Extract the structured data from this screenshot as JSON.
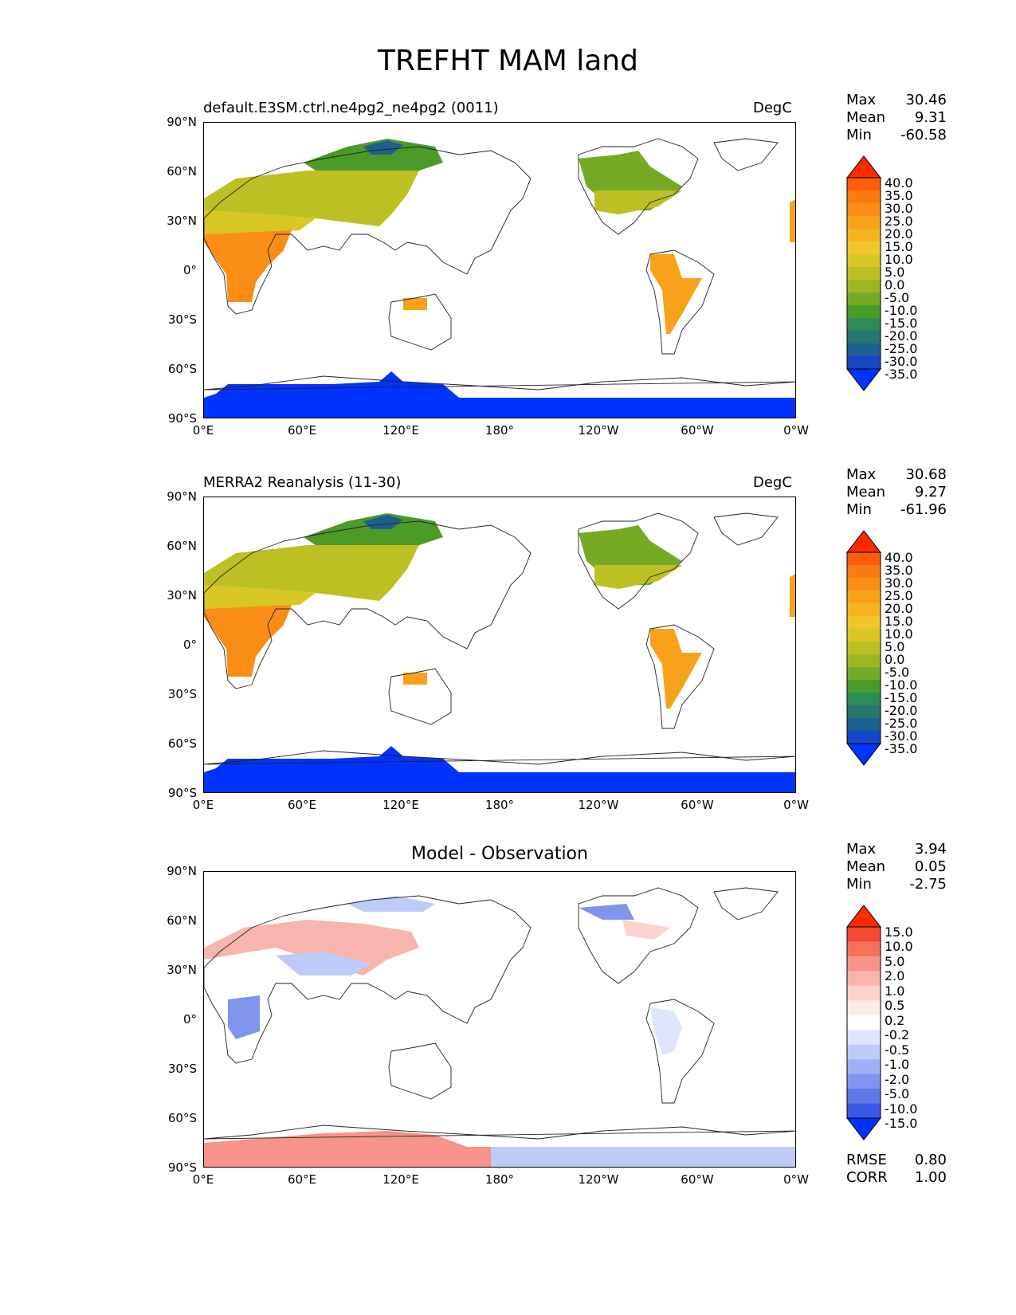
{
  "figure": {
    "title": "TREFHT MAM land"
  },
  "panels": [
    {
      "id": "test",
      "left_title": "default.E3SM.ctrl.ne4pg2_ne4pg2 (0011)",
      "right_title": "DegC",
      "stats": {
        "max_label": "Max",
        "max": "30.46",
        "mean_label": "Mean",
        "mean": "9.31",
        "min_label": "Min",
        "min": "-60.58"
      }
    },
    {
      "id": "reference",
      "left_title": "MERRA2 Reanalysis (11-30)",
      "right_title": "DegC",
      "stats": {
        "max_label": "Max",
        "max": "30.68",
        "mean_label": "Mean",
        "mean": "9.27",
        "min_label": "Min",
        "min": "-61.96"
      }
    },
    {
      "id": "difference",
      "center_title": "Model - Observation",
      "stats": {
        "max_label": "Max",
        "max": "3.94",
        "mean_label": "Mean",
        "mean": "0.05",
        "min_label": "Min",
        "min": "-2.75"
      },
      "metrics": {
        "rmse_label": "RMSE",
        "rmse": "0.80",
        "corr_label": "CORR",
        "corr": "1.00"
      }
    }
  ],
  "axes": {
    "lat_ticks": [
      "90°N",
      "60°N",
      "30°N",
      "0°",
      "30°S",
      "60°S",
      "90°S"
    ],
    "lon_ticks": [
      "0°E",
      "60°E",
      "120°E",
      "180°",
      "120°W",
      "60°W",
      "0°W"
    ]
  },
  "colorbars": {
    "temperature": {
      "levels": [
        "40.0",
        "35.0",
        "30.0",
        "25.0",
        "20.0",
        "15.0",
        "10.0",
        "5.0",
        "0.0",
        "-5.0",
        "-10.0",
        "-15.0",
        "-20.0",
        "-25.0",
        "-30.0",
        "-35.0"
      ],
      "colors": [
        "#ff2a00",
        "#fd5d0b",
        "#fb7a12",
        "#f98d15",
        "#f7a21a",
        "#f4b51f",
        "#f0c72a",
        "#d8c724",
        "#bdc022",
        "#9cb723",
        "#76a925",
        "#4b9a27",
        "#2e8b57",
        "#27766f",
        "#1f5f8f",
        "#1546c6",
        "#0033ff"
      ]
    },
    "difference": {
      "levels": [
        "15.0",
        "10.0",
        "5.0",
        "2.0",
        "1.0",
        "0.5",
        "0.2",
        "-0.2",
        "-0.5",
        "-1.0",
        "-2.0",
        "-5.0",
        "-10.0",
        "-15.0"
      ],
      "colors": [
        "#ff2a00",
        "#f24a33",
        "#f4715c",
        "#f6938a",
        "#f8b4ae",
        "#fad3cf",
        "#fcebe9",
        "#ffffff",
        "#dfe6fb",
        "#bfcbf7",
        "#a0b0f3",
        "#8094ee",
        "#5f77e9",
        "#3b58e6",
        "#0033ff"
      ]
    }
  },
  "chart_data": {
    "type": "map",
    "projection": "PlateCarree (central longitude 180°)",
    "variable": "TREFHT",
    "season": "MAM",
    "units": "DegC",
    "lat_range": [
      -90,
      90
    ],
    "lon_range": [
      0,
      360
    ],
    "panels": [
      {
        "name": "default.E3SM.ctrl.ne4pg2_ne4pg2 (0011)",
        "max": 30.46,
        "mean": 9.31,
        "min": -60.58,
        "contour_levels": [
          -35,
          -30,
          -25,
          -20,
          -15,
          -10,
          -5,
          0,
          5,
          10,
          15,
          20,
          25,
          30,
          35,
          40
        ]
      },
      {
        "name": "MERRA2 Reanalysis (11-30)",
        "max": 30.68,
        "mean": 9.27,
        "min": -61.96,
        "contour_levels": [
          -35,
          -30,
          -25,
          -20,
          -15,
          -10,
          -5,
          0,
          5,
          10,
          15,
          20,
          25,
          30,
          35,
          40
        ]
      },
      {
        "name": "Model - Observation",
        "max": 3.94,
        "mean": 0.05,
        "min": -2.75,
        "rmse": 0.8,
        "corr": 1.0,
        "contour_levels": [
          -15,
          -10,
          -5,
          -2,
          -1,
          -0.5,
          -0.2,
          0.2,
          0.5,
          1,
          2,
          5,
          10,
          15
        ]
      }
    ]
  }
}
